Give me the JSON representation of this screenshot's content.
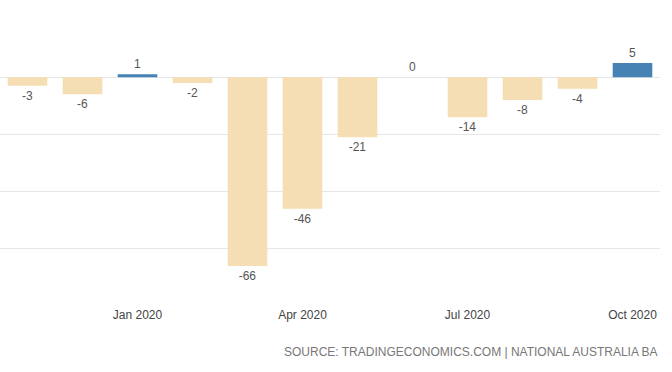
{
  "chart_data": {
    "type": "bar",
    "categories": [
      null,
      null,
      "Jan 2020",
      null,
      null,
      "Apr 2020",
      null,
      null,
      "Jul 2020",
      null,
      null,
      "Oct 2020"
    ],
    "values": [
      -3,
      -6,
      1,
      -2,
      -66,
      -46,
      -21,
      0,
      -14,
      -8,
      -4,
      5
    ],
    "colors": [
      "#f5deb3",
      "#f5deb3",
      "#4682b4",
      "#f5deb3",
      "#f5deb3",
      "#f5deb3",
      "#f5deb3",
      "#f5deb3",
      "#f5deb3",
      "#f5deb3",
      "#f5deb3",
      "#4682b4"
    ],
    "ylim": [
      -80,
      20
    ],
    "yticks": [
      -80,
      -60,
      -40,
      -20,
      0,
      20
    ],
    "grid": true,
    "data_labels": true,
    "tick_labels": "x",
    "annotations": [
      "SOURCE: TRADINGECONOMICS.COM | NATIONAL AUSTRALIA BA"
    ]
  }
}
